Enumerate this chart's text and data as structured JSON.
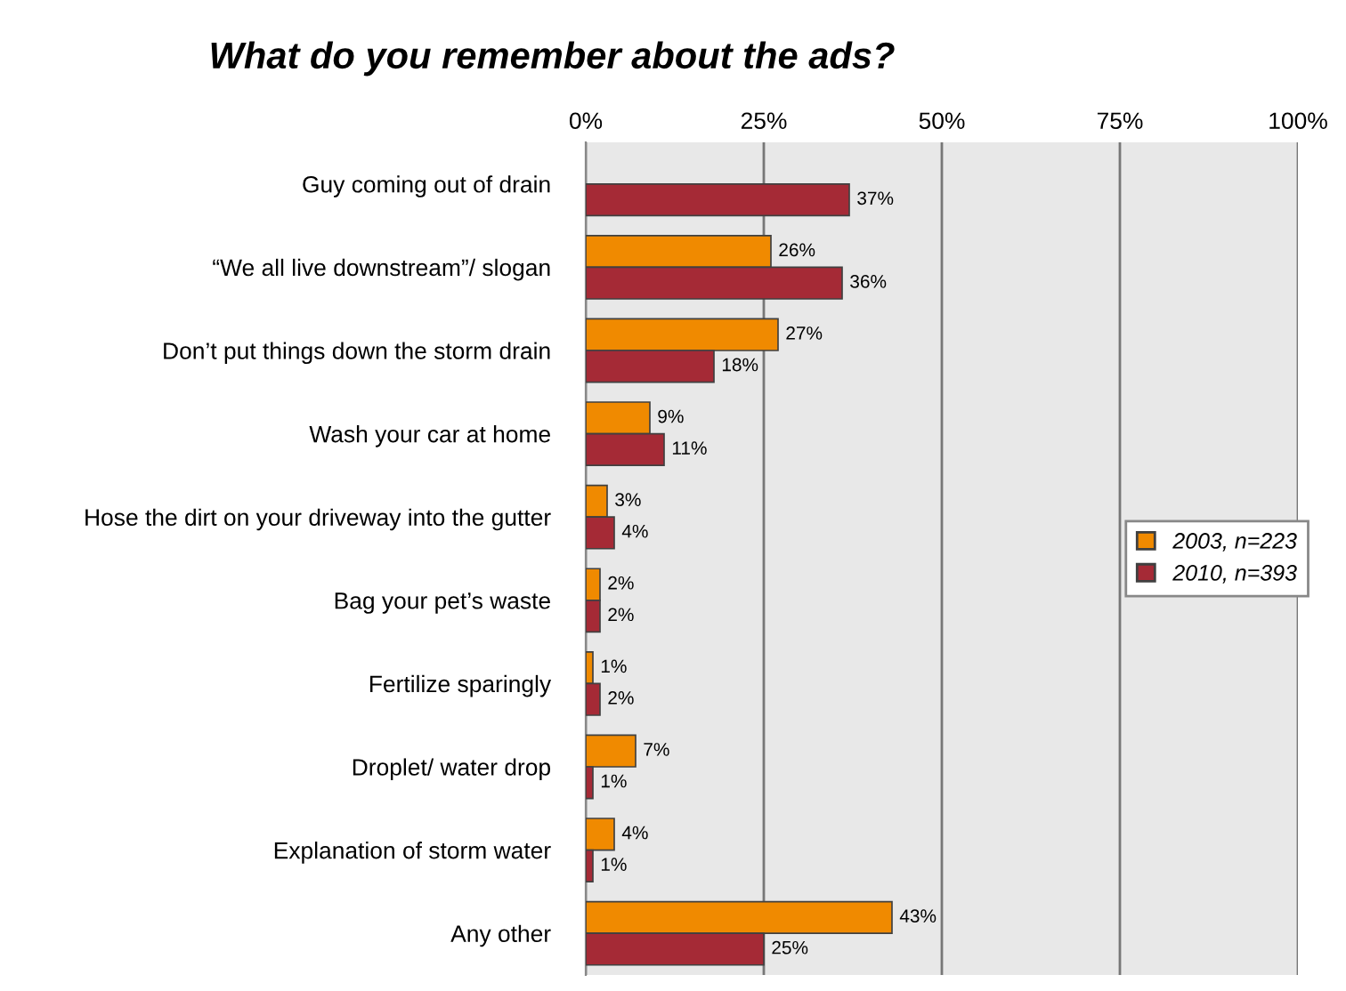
{
  "chart_data": {
    "type": "bar",
    "orientation": "horizontal",
    "title": "What do you remember about the ads?",
    "categories": [
      "Guy coming out of drain",
      "“We all live downstream”/ slogan",
      "Don’t put things down the storm drain",
      "Wash your car at home",
      "Hose the dirt on your driveway into the gutter",
      "Bag your pet’s waste",
      "Fertilize sparingly",
      "Droplet/ water drop",
      "Explanation of storm water",
      "Any other"
    ],
    "series": [
      {
        "name": "2003, n=223",
        "color": "#f08a00",
        "values": [
          null,
          26,
          27,
          9,
          3,
          2,
          1,
          7,
          4,
          43
        ],
        "value_labels": [
          null,
          "26%",
          "27%",
          "9%",
          "3%",
          "2%",
          "1%",
          "7%",
          "4%",
          "43%"
        ]
      },
      {
        "name": "2010, n=393",
        "color": "#a52a36",
        "values": [
          37,
          36,
          18,
          11,
          4,
          2,
          2,
          1,
          1,
          25
        ],
        "value_labels": [
          "37%",
          "36%",
          "18%",
          "11%",
          "4%",
          "2%",
          "2%",
          "1%",
          "1%",
          "25%"
        ]
      }
    ],
    "xlim": [
      0,
      100
    ],
    "xticks": [
      {
        "value": 0,
        "label": "0%"
      },
      {
        "value": 25,
        "label": "25%"
      },
      {
        "value": 50,
        "label": "50%"
      },
      {
        "value": 75,
        "label": "75%"
      },
      {
        "value": 100,
        "label": "100%"
      }
    ],
    "grid": "x",
    "legend": "right"
  }
}
